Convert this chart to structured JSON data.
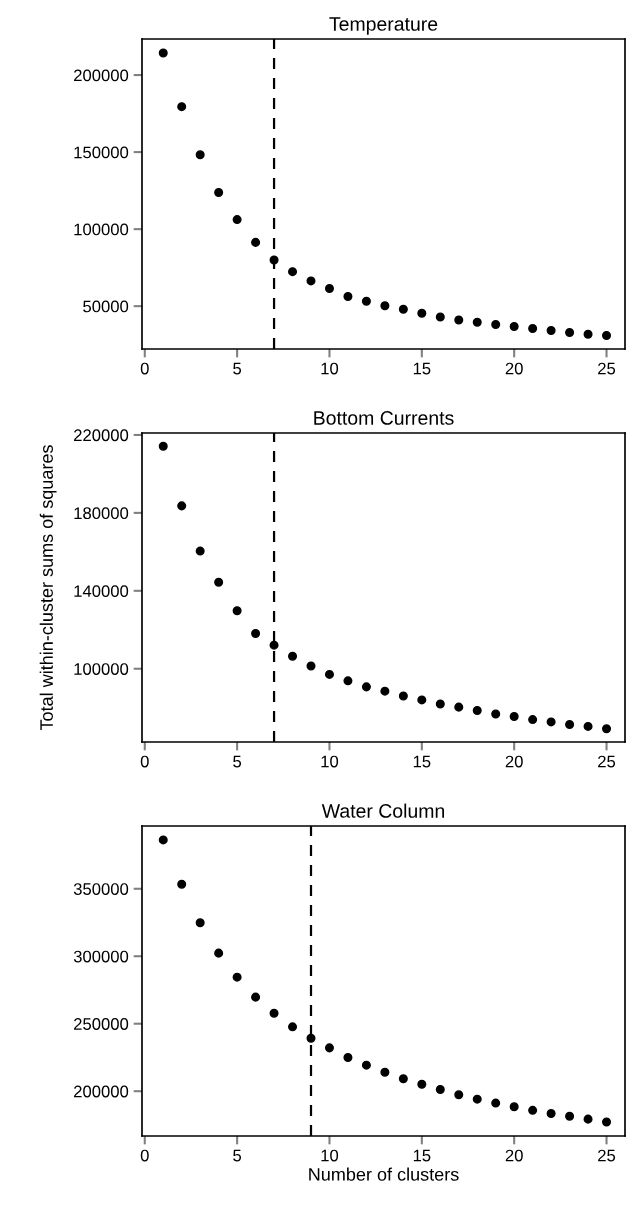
{
  "chart_data": [
    {
      "type": "scatter",
      "title": "Temperature",
      "x": [
        1,
        2,
        3,
        4,
        5,
        6,
        7,
        8,
        9,
        10,
        11,
        12,
        13,
        14,
        15,
        16,
        17,
        18,
        19,
        20,
        21,
        22,
        23,
        24,
        25
      ],
      "series": [
        {
          "color": "#000000",
          "values": [
            214300,
            179500,
            148300,
            123800,
            106200,
            91400,
            80000,
            72400,
            66400,
            61500,
            56300,
            53200,
            50300,
            48000,
            45400,
            43000,
            41000,
            39600,
            38100,
            36800,
            35500,
            34200,
            32900,
            31800,
            31000
          ]
        }
      ],
      "xlim": [
        -0.15,
        26
      ],
      "xticks": [
        0,
        5,
        10,
        15,
        20,
        25
      ],
      "ylim": [
        22200,
        223400
      ],
      "yticks": [
        50000,
        100000,
        150000,
        200000
      ],
      "marker": "circle",
      "grid": false,
      "ref_lines": [
        {
          "axis": "x",
          "value": 7,
          "color": "#000000",
          "line_style": "dashed"
        }
      ]
    },
    {
      "type": "scatter",
      "title": "Bottom Currents",
      "ylabel": "Total within-cluster sums of squares",
      "x": [
        1,
        2,
        3,
        4,
        5,
        6,
        7,
        8,
        9,
        10,
        11,
        12,
        13,
        14,
        15,
        16,
        17,
        18,
        19,
        20,
        21,
        22,
        23,
        24,
        25
      ],
      "series": [
        {
          "color": "#000000",
          "values": [
            214200,
            183600,
            160400,
            144400,
            129800,
            118100,
            112100,
            106400,
            101400,
            97100,
            93800,
            90700,
            88500,
            86000,
            84000,
            81900,
            80300,
            78600,
            76800,
            75500,
            73900,
            72700,
            71400,
            70400,
            69200
          ]
        }
      ],
      "xlim": [
        -0.15,
        26
      ],
      "xticks": [
        0,
        5,
        10,
        15,
        20,
        25
      ],
      "ylim": [
        62400,
        221000
      ],
      "yticks": [
        100000,
        140000,
        180000,
        220000
      ],
      "marker": "circle",
      "grid": false,
      "ref_lines": [
        {
          "axis": "x",
          "value": 7,
          "color": "#000000",
          "line_style": "dashed"
        }
      ]
    },
    {
      "type": "scatter",
      "title": "Water Column",
      "xlabel": "Number of clusters",
      "x": [
        1,
        2,
        3,
        4,
        5,
        6,
        7,
        8,
        9,
        10,
        11,
        12,
        13,
        14,
        15,
        16,
        17,
        18,
        19,
        20,
        21,
        22,
        23,
        24,
        25
      ],
      "series": [
        {
          "color": "#000000",
          "values": [
            386200,
            353300,
            324800,
            302300,
            284500,
            269700,
            257800,
            247700,
            239200,
            232100,
            225000,
            219300,
            214000,
            209200,
            205100,
            201300,
            197400,
            194100,
            191200,
            188500,
            185800,
            183500,
            181400,
            179300,
            177200
          ]
        }
      ],
      "xlim": [
        -0.15,
        26
      ],
      "xticks": [
        0,
        5,
        10,
        15,
        20,
        25
      ],
      "ylim": [
        166800,
        396500
      ],
      "yticks": [
        200000,
        250000,
        300000,
        350000
      ],
      "marker": "circle",
      "grid": false,
      "ref_lines": [
        {
          "axis": "x",
          "value": 9,
          "color": "#000000",
          "line_style": "dashed"
        }
      ]
    }
  ]
}
